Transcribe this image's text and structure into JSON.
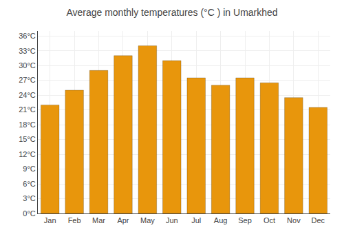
{
  "chart_data": {
    "type": "bar",
    "title": "Average monthly temperatures (°C ) in Umarkhed",
    "categories": [
      "Jan",
      "Feb",
      "Mar",
      "Apr",
      "May",
      "Jun",
      "Jul",
      "Aug",
      "Sep",
      "Oct",
      "Nov",
      "Dec"
    ],
    "values": [
      22,
      25,
      29,
      32,
      34,
      31,
      27.5,
      26,
      27.5,
      26.5,
      23.5,
      21.5
    ],
    "color": "#E8960C",
    "ylim": [
      0,
      37
    ],
    "yticks": [
      {
        "value": 0,
        "label": "0°C"
      },
      {
        "value": 3,
        "label": "3°C"
      },
      {
        "value": 6,
        "label": "6°C"
      },
      {
        "value": 9,
        "label": "9°C"
      },
      {
        "value": 12,
        "label": "12°C"
      },
      {
        "value": 15,
        "label": "15°C"
      },
      {
        "value": 18,
        "label": "18°C"
      },
      {
        "value": 21,
        "label": "21°C"
      },
      {
        "value": 24,
        "label": "24°C"
      },
      {
        "value": 27,
        "label": "27°C"
      },
      {
        "value": 30,
        "label": "30°C"
      },
      {
        "value": 33,
        "label": "33°C"
      },
      {
        "value": 36,
        "label": "36°C"
      }
    ],
    "grid": true
  }
}
